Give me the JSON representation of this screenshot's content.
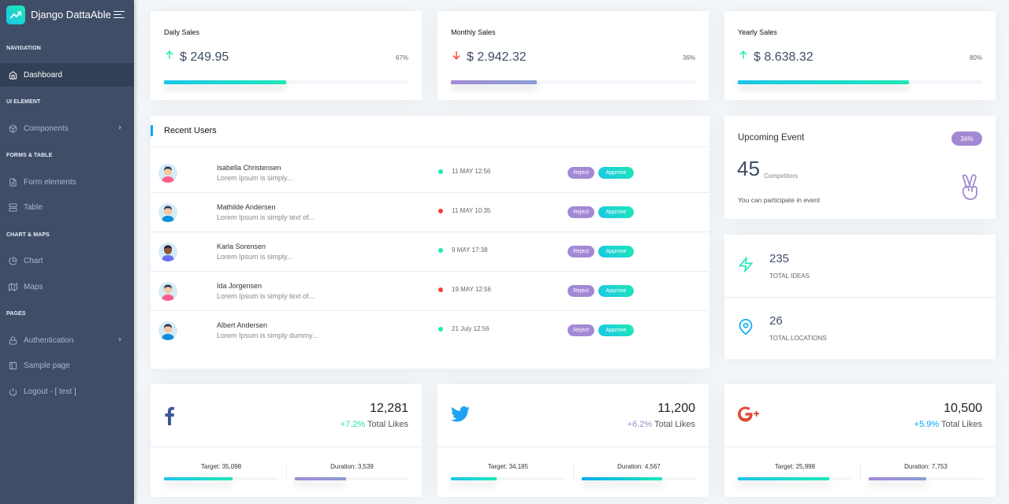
{
  "brand": {
    "name": "Django DattaAble"
  },
  "nav": {
    "captions": [
      "NAVIGATION",
      "UI ELEMENT",
      "FORMS & TABLE",
      "CHART & MAPS",
      "PAGES"
    ],
    "items": [
      {
        "label": "Dashboard",
        "icon": "home-icon"
      },
      {
        "label": "Components",
        "icon": "box-icon"
      },
      {
        "label": "Form elements",
        "icon": "file-text-icon"
      },
      {
        "label": "Table",
        "icon": "server-icon"
      },
      {
        "label": "Chart",
        "icon": "pie-chart-icon"
      },
      {
        "label": "Maps",
        "icon": "map-icon"
      },
      {
        "label": "Authentication",
        "icon": "lock-icon"
      },
      {
        "label": "Sample page",
        "icon": "sidebar-icon"
      },
      {
        "label": "Logout - [ test ]",
        "icon": "power-icon"
      }
    ]
  },
  "sales": [
    {
      "title": "Daily Sales",
      "value": "$ 249.95",
      "percent": "67%",
      "progress": 50,
      "trend": "up"
    },
    {
      "title": "Monthly Sales",
      "value": "$ 2.942.32",
      "percent": "36%",
      "progress": 35,
      "trend": "down"
    },
    {
      "title": "Yearly Sales",
      "value": "$ 8.638.32",
      "percent": "80%",
      "progress": 70,
      "trend": "up"
    }
  ],
  "recent_users": {
    "title": "Recent Users",
    "reject_label": "Reject",
    "approve_label": "Approve",
    "rows": [
      {
        "name": "Isabella Christensen",
        "desc": "Lorem Ipsum is simply...",
        "date": "11 MAY 12:56",
        "status": "green"
      },
      {
        "name": "Mathilde Andersen",
        "desc": "Lorem Ipsum is simply text of...",
        "date": "11 MAY 10:35",
        "status": "red"
      },
      {
        "name": "Karla Sorensen",
        "desc": "Lorem Ipsum is simply...",
        "date": "9 MAY 17:38",
        "status": "green"
      },
      {
        "name": "Ida Jorgensen",
        "desc": "Lorem Ipsum is simply text of...",
        "date": "19 MAY 12:56",
        "status": "red"
      },
      {
        "name": "Albert Andersen",
        "desc": "Lorem Ipsum is simply dummy...",
        "date": "21 July 12:56",
        "status": "green"
      }
    ]
  },
  "event": {
    "title": "Upcoming Event",
    "badge": "34%",
    "count": "45",
    "unit": "Competitors",
    "desc": "You can participate in event"
  },
  "stats": [
    {
      "value": "235",
      "label": "TOTAL IDEAS"
    },
    {
      "value": "26",
      "label": "TOTAL LOCATIONS"
    }
  ],
  "social": [
    {
      "network": "facebook",
      "value": "12,281",
      "change": "+7.2%",
      "change_label": "Total Likes",
      "target": "35,098",
      "duration": "3,539",
      "target_progress": 60,
      "duration_progress": 45
    },
    {
      "network": "twitter",
      "value": "11,200",
      "change": "+6.2%",
      "change_label": "Total Likes",
      "target": "34,185",
      "duration": "4,567",
      "target_progress": 40,
      "duration_progress": 70
    },
    {
      "network": "google-plus",
      "value": "10,500",
      "change": "+5.9%",
      "change_label": "Total Likes",
      "target": "25,998",
      "duration": "7,753",
      "target_progress": 80,
      "duration_progress": 50
    }
  ],
  "labels": {
    "target": "Target:",
    "duration": "Duration:"
  },
  "colors": {
    "accent": "#04a9f5",
    "green": "#1de9b6",
    "purple": "#a389d4",
    "red": "#f44236",
    "sidebar": "#3f4d67"
  }
}
